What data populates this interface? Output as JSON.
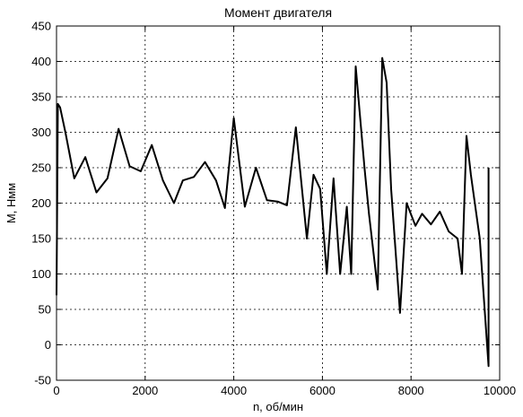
{
  "chart_data": {
    "type": "line",
    "title": "Момент двигателя",
    "xlabel": "n, об/мин",
    "ylabel": "М, Нмм",
    "xlim": [
      0,
      10000
    ],
    "ylim": [
      -50,
      450
    ],
    "xticks": [
      0,
      2000,
      4000,
      6000,
      8000,
      10000
    ],
    "yticks": [
      -50,
      0,
      50,
      100,
      150,
      200,
      250,
      300,
      350,
      400,
      450
    ],
    "grid": true,
    "series": [
      {
        "color": "#000000",
        "x": [
          0,
          10,
          30,
          80,
          200,
          400,
          650,
          900,
          1150,
          1400,
          1650,
          1900,
          2150,
          2400,
          2650,
          2850,
          3100,
          3350,
          3600,
          3800,
          4000,
          4250,
          4500,
          4750,
          5000,
          5200,
          5400,
          5650,
          5800,
          5950,
          6100,
          6250,
          6400,
          6550,
          6650,
          6750,
          6950,
          7050,
          7250,
          7350,
          7450,
          7550,
          7750,
          7900,
          8100,
          8250,
          8450,
          8650,
          8850,
          9050,
          9150,
          9250,
          9350,
          9550,
          9750,
          9750
        ],
        "values": [
          70,
          160,
          340,
          335,
          300,
          235,
          265,
          215,
          235,
          305,
          252,
          245,
          282,
          232,
          200,
          232,
          237,
          258,
          232,
          193,
          320,
          195,
          250,
          204,
          202,
          197,
          307,
          150,
          240,
          220,
          100,
          235,
          100,
          195,
          100,
          393,
          250,
          185,
          78,
          405,
          370,
          220,
          45,
          200,
          168,
          185,
          170,
          188,
          160,
          150,
          100,
          295,
          240,
          150,
          -30,
          250
        ]
      }
    ]
  }
}
